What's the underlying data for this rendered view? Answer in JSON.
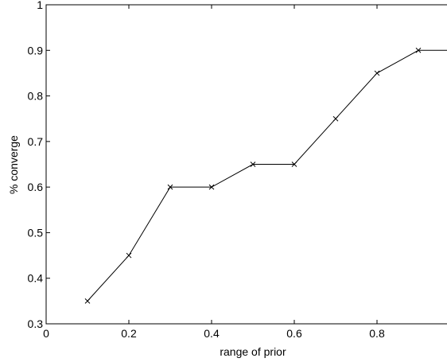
{
  "chart_data": {
    "type": "line",
    "title": "",
    "xlabel": "range of prior",
    "ylabel": "% converge",
    "xlim": [
      0,
      1
    ],
    "ylim": [
      0.3,
      1
    ],
    "x_ticks": [
      0,
      0.2,
      0.4,
      0.6,
      0.8
    ],
    "x_tick_labels": [
      "0",
      "0.2",
      "0.4",
      "0.6",
      "0.8"
    ],
    "y_ticks": [
      0.3,
      0.4,
      0.5,
      0.6,
      0.7,
      0.8,
      0.9,
      1
    ],
    "y_tick_labels": [
      "0.3",
      "0.4",
      "0.5",
      "0.6",
      "0.7",
      "0.8",
      "0.9",
      "1"
    ],
    "grid": false,
    "marker": "x",
    "line_color": "#000000",
    "series": [
      {
        "x": [
          0.1,
          0.2,
          0.3,
          0.4,
          0.5,
          0.6,
          0.7,
          0.8,
          0.9,
          1.0
        ],
        "y": [
          0.35,
          0.45,
          0.6,
          0.6,
          0.65,
          0.65,
          0.75,
          0.85,
          0.9,
          0.9
        ]
      }
    ]
  }
}
